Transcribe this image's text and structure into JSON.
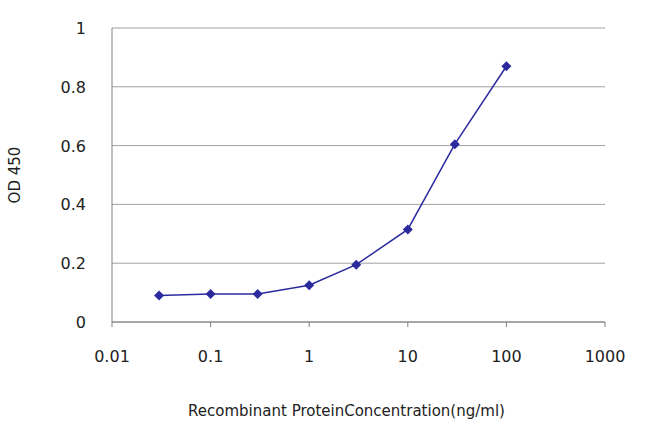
{
  "chart_data": {
    "type": "line",
    "xlabel": "Recombinant ProteinConcentration(ng/ml)",
    "ylabel": "OD 450",
    "x": [
      0.03,
      0.1,
      0.3,
      1,
      3,
      10,
      30,
      100
    ],
    "values": [
      0.09,
      0.095,
      0.095,
      0.125,
      0.195,
      0.315,
      0.605,
      0.87
    ],
    "color": "#2b2b9e",
    "marker": "diamond",
    "line_style": "solid",
    "log": "x",
    "xlim": [
      0.01,
      1000
    ],
    "xticks": [
      0.01,
      0.1,
      1,
      10,
      100,
      1000
    ],
    "ylim": [
      0,
      1
    ],
    "yticks": [
      0,
      0.2,
      0.4,
      0.6,
      0.8,
      1
    ],
    "grid": true
  }
}
